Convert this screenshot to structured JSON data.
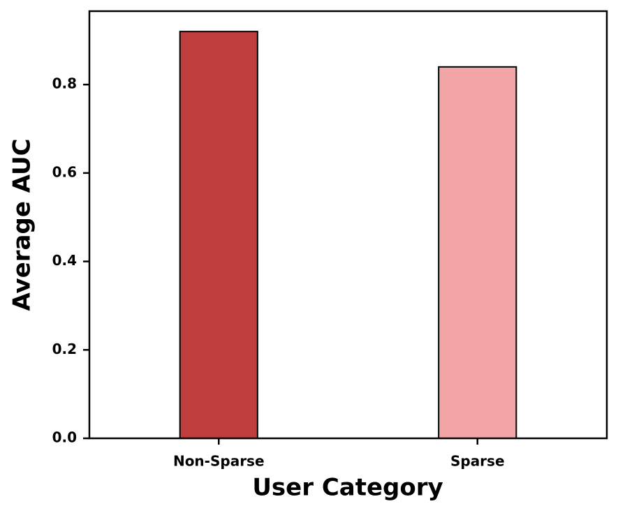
{
  "chart_data": {
    "type": "bar",
    "x_label": "User Category",
    "y_label": "Average AUC",
    "categories": [
      "Non-Sparse",
      "Sparse"
    ],
    "values": [
      0.92,
      0.84
    ],
    "colors": [
      "#be3d3d",
      "#f2a5a5"
    ],
    "ylim": [
      0,
      0.966
    ],
    "yticks": [
      {
        "value": 0,
        "label": "0.0"
      },
      0.2,
      0.4,
      0.6,
      0.8
    ],
    "grid": false
  }
}
